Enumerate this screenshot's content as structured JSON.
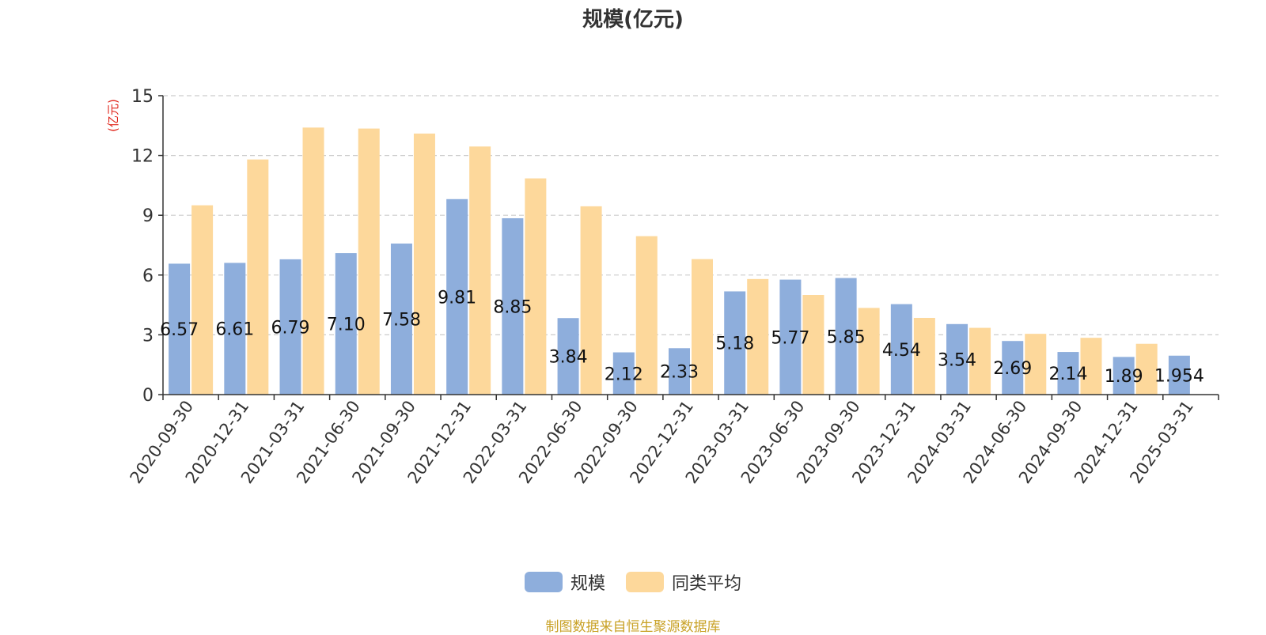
{
  "chart_data": {
    "type": "bar",
    "title": "规模(亿元)",
    "ylabel": "(亿元)",
    "xlabel": "",
    "ylim": [
      0,
      15
    ],
    "yticks": [
      0,
      3,
      6,
      9,
      12,
      15
    ],
    "grid": true,
    "legend_position": "bottom",
    "categories": [
      "2020-09-30",
      "2020-12-31",
      "2021-03-31",
      "2021-06-30",
      "2021-09-30",
      "2021-12-31",
      "2022-03-31",
      "2022-06-30",
      "2022-09-30",
      "2022-12-31",
      "2023-03-31",
      "2023-06-30",
      "2023-09-30",
      "2023-12-31",
      "2024-03-31",
      "2024-06-30",
      "2024-09-30",
      "2024-12-31",
      "2025-03-31"
    ],
    "series": [
      {
        "name": "规模",
        "color": "#8eaedc",
        "values": [
          6.57,
          6.61,
          6.79,
          7.1,
          7.58,
          9.81,
          8.85,
          3.84,
          2.12,
          2.33,
          5.18,
          5.77,
          5.85,
          4.54,
          3.54,
          2.69,
          2.14,
          1.89,
          1.954
        ],
        "labels": [
          "6.57",
          "6.61",
          "6.79",
          "7.10",
          "7.58",
          "9.81",
          "8.85",
          "3.84",
          "2.12",
          "2.33",
          "5.18",
          "5.77",
          "5.85",
          "4.54",
          "3.54",
          "2.69",
          "2.14",
          "1.89",
          "1.954"
        ]
      },
      {
        "name": "同类平均",
        "color": "#fdd89b",
        "values": [
          9.5,
          11.8,
          13.4,
          13.35,
          13.1,
          12.45,
          10.85,
          9.45,
          7.95,
          6.8,
          5.8,
          5.0,
          4.35,
          3.85,
          3.35,
          3.05,
          2.85,
          2.55,
          null
        ]
      }
    ]
  },
  "source_note": "制图数据来自恒生聚源数据库"
}
